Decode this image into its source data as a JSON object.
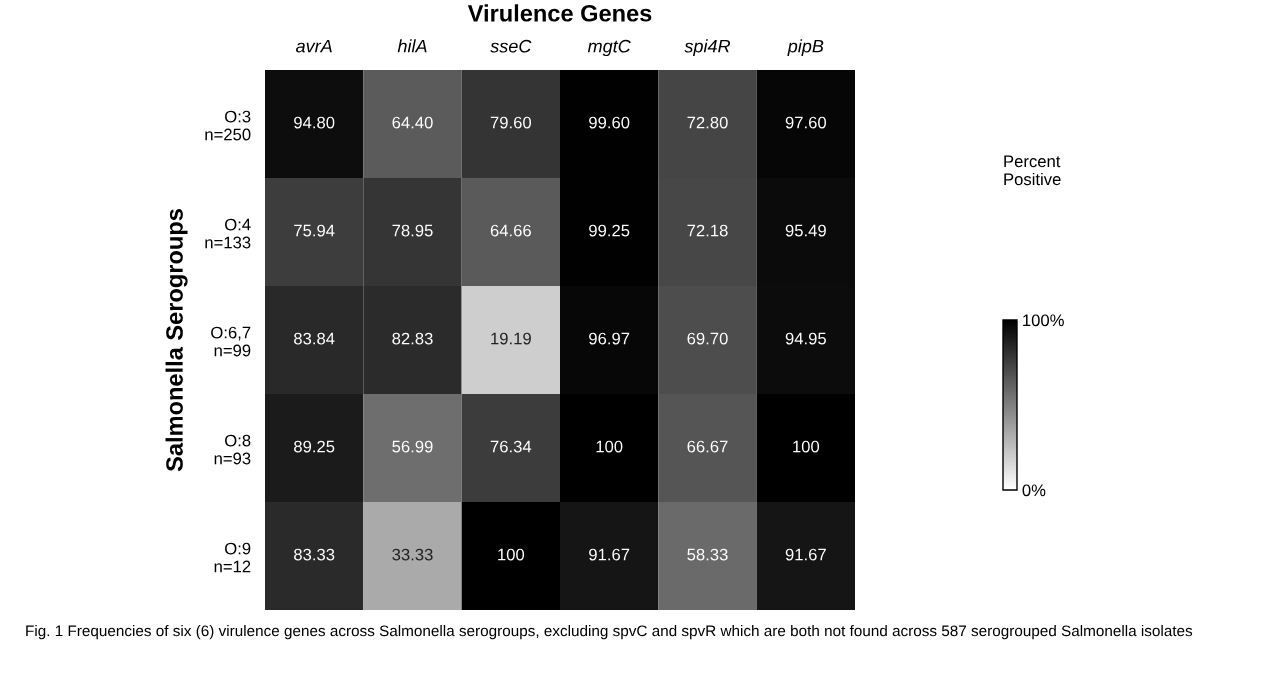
{
  "chart_data": {
    "type": "heatmap",
    "title": "Virulence Genes",
    "ylabel": "Salmonella Serogroups",
    "clabel": "Percent\nPositive",
    "categories": [
      "avrA",
      "hilA",
      "sseC",
      "mgtC",
      "spi4R",
      "pipB"
    ],
    "y_categories": [
      "O:3\nn=250",
      "O:4\nn=133",
      "O:6,7\nn=99",
      "O:8\nn=93",
      "O:9\nn=12"
    ],
    "cells": [
      [
        94.8,
        64.4,
        79.6,
        99.6,
        72.8,
        97.6
      ],
      [
        75.94,
        78.95,
        64.66,
        99.25,
        72.18,
        95.49
      ],
      [
        83.84,
        82.83,
        19.19,
        96.97,
        69.7,
        94.95
      ],
      [
        89.25,
        56.99,
        76.34,
        100,
        66.67,
        100
      ],
      [
        83.33,
        33.33,
        100,
        91.67,
        58.33,
        91.67
      ]
    ],
    "cell_labels": [
      [
        "94.80",
        "64.40",
        "79.60",
        "99.60",
        "72.80",
        "97.60"
      ],
      [
        "75.94",
        "78.95",
        "64.66",
        "99.25",
        "72.18",
        "95.49"
      ],
      [
        "83.84",
        "82.83",
        "19.19",
        "96.97",
        "69.70",
        "94.95"
      ],
      [
        "89.25",
        "56.99",
        "76.34",
        "100",
        "66.67",
        "100"
      ],
      [
        "83.33",
        "33.33",
        "100",
        "91.67",
        "58.33",
        "91.67"
      ]
    ],
    "clim": [
      0,
      100
    ],
    "cticks": [
      {
        "value": 0,
        "label": "0%"
      },
      {
        "value": 100,
        "label": "100%"
      }
    ],
    "annotations": [
      "Fig. 1 Frequencies of six (6) virulence genes across Salmonella serogroups, excluding spvC and spvR which are both not found across 587 serogrouped Salmonella isolates"
    ]
  }
}
